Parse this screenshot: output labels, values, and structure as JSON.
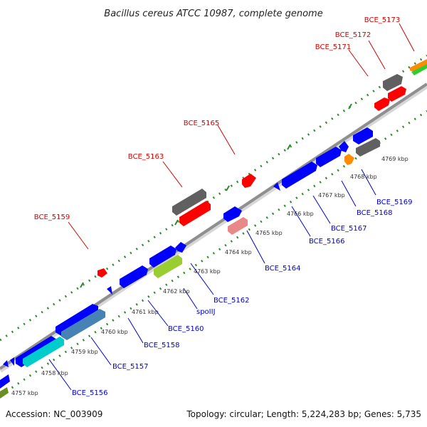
{
  "title": "Bacillus cereus ATCC 10987, complete genome",
  "footer": {
    "accession": "Accession: NC_003909",
    "summary": "Topology: circular; Length: 5,224,283 bp; Genes: 5,735"
  },
  "colors": {
    "forward_label": "#d40000",
    "reverse_label": "#0000d0",
    "backbone": "#8f8f8f",
    "tick": "#2e8b2e"
  },
  "scale": {
    "unit": "kbp",
    "ticks": [
      "4757 kbp",
      "4758 kbp",
      "4759 kbp",
      "4760 kbp",
      "4761 kbp",
      "4762 kbp",
      "4763 kbp",
      "4764 kbp",
      "4765 kbp",
      "4766 kbp",
      "4767 kbp",
      "4768 kbp",
      "4769 kbp"
    ]
  },
  "forward_labels": [
    "BCE_5159",
    "BCE_5163",
    "BCE_5165",
    "BCE_5171",
    "BCE_5172",
    "BCE_5173"
  ],
  "reverse_labels": [
    "BCE_5156",
    "BCE_5157",
    "BCE_5158",
    "BCE_5160",
    "spoIIJ",
    "BCE_5162",
    "BCE_5164",
    "BCE_5166",
    "BCE_5167",
    "BCE_5168",
    "BCE_5169"
  ]
}
